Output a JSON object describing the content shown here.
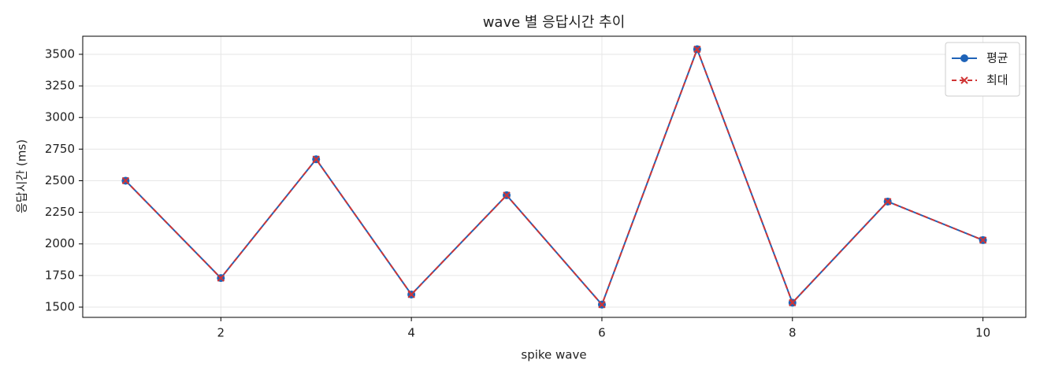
{
  "chart_data": {
    "type": "line",
    "title": "wave 별 응답시간 추이",
    "x_label": "spike wave",
    "y_label": "응답시간 (ms)",
    "x": [
      1,
      2,
      3,
      4,
      5,
      6,
      7,
      8,
      9,
      10
    ],
    "series": [
      {
        "name": "평균",
        "color": "#1f63b8",
        "marker": "circle",
        "dash": "solid",
        "values": [
          2500,
          1730,
          2670,
          1600,
          2385,
          1520,
          3540,
          1535,
          2335,
          2030
        ]
      },
      {
        "name": "최대",
        "color": "#d03535",
        "marker": "x",
        "dash": "dashed",
        "values": [
          2500,
          1730,
          2670,
          1600,
          2385,
          1520,
          3540,
          1535,
          2335,
          2030
        ]
      }
    ],
    "xlim": [
      0.55,
      10.45
    ],
    "ylim": [
      1419,
      3643
    ],
    "xticks": [
      2,
      4,
      6,
      8,
      10
    ],
    "yticks": [
      1500,
      1750,
      2000,
      2250,
      2500,
      2750,
      3000,
      3250,
      3500
    ],
    "grid": true,
    "legend": "upper right"
  }
}
